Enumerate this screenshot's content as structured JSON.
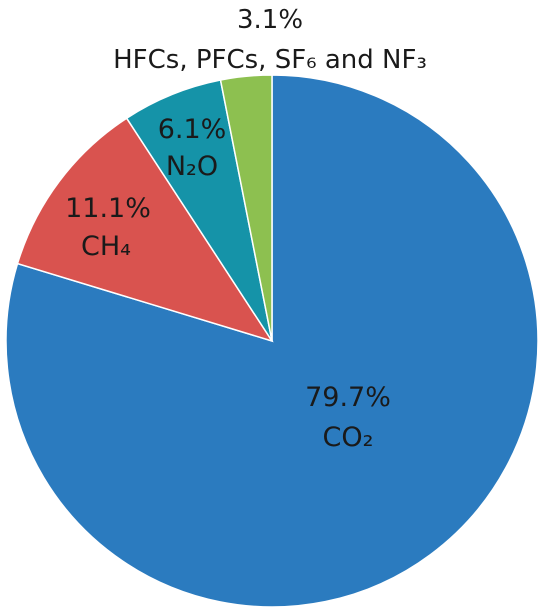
{
  "chart_data": {
    "type": "pie",
    "start": "12 o'clock",
    "direction": "clockwise",
    "slices": [
      {
        "label": "CO₂",
        "value": 79.7,
        "value_label": "79.7%",
        "color": "#2b7bbf"
      },
      {
        "label": "CH₄",
        "value": 11.1,
        "value_label": "11.1%",
        "color": "#d9534f"
      },
      {
        "label": "N₂O",
        "value": 6.1,
        "value_label": "6.1%",
        "color": "#1593a8"
      },
      {
        "label": "HFCs, PFCs, SF₆ and NF₃",
        "value": 3.1,
        "value_label": "3.1%",
        "color": "#8dc050"
      }
    ]
  }
}
